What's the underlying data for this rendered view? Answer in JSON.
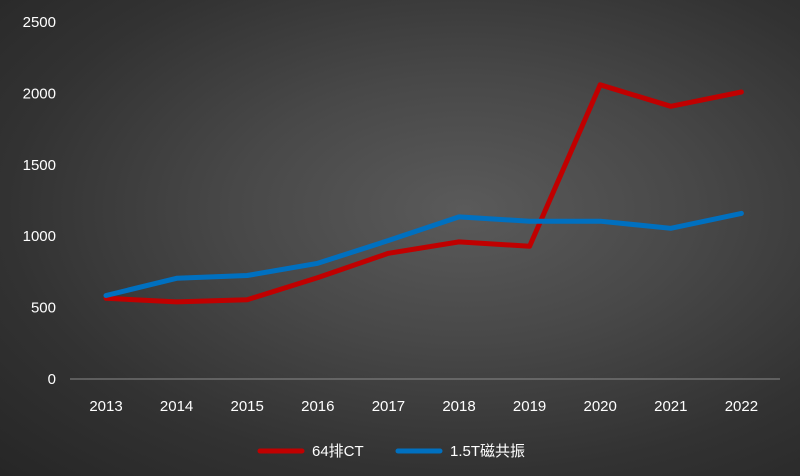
{
  "chart_data": {
    "type": "line",
    "title": "",
    "xlabel": "",
    "ylabel": "",
    "categories": [
      "2013",
      "2014",
      "2015",
      "2016",
      "2017",
      "2018",
      "2019",
      "2020",
      "2021",
      "2022"
    ],
    "ylim": [
      0,
      2500
    ],
    "yticks": [
      0,
      500,
      1000,
      1500,
      2000,
      2500
    ],
    "grid": false,
    "legend_position": "bottom",
    "series": [
      {
        "name": "64排CT",
        "color": "#c00000",
        "values": [
          565,
          540,
          555,
          710,
          880,
          960,
          930,
          2060,
          1910,
          2010
        ]
      },
      {
        "name": "1.5T磁共振",
        "color": "#0070c0",
        "values": [
          585,
          705,
          725,
          810,
          970,
          1135,
          1105,
          1105,
          1055,
          1160
        ]
      }
    ],
    "axis_color": "#8a8a8a",
    "text_color": "#ffffff"
  }
}
